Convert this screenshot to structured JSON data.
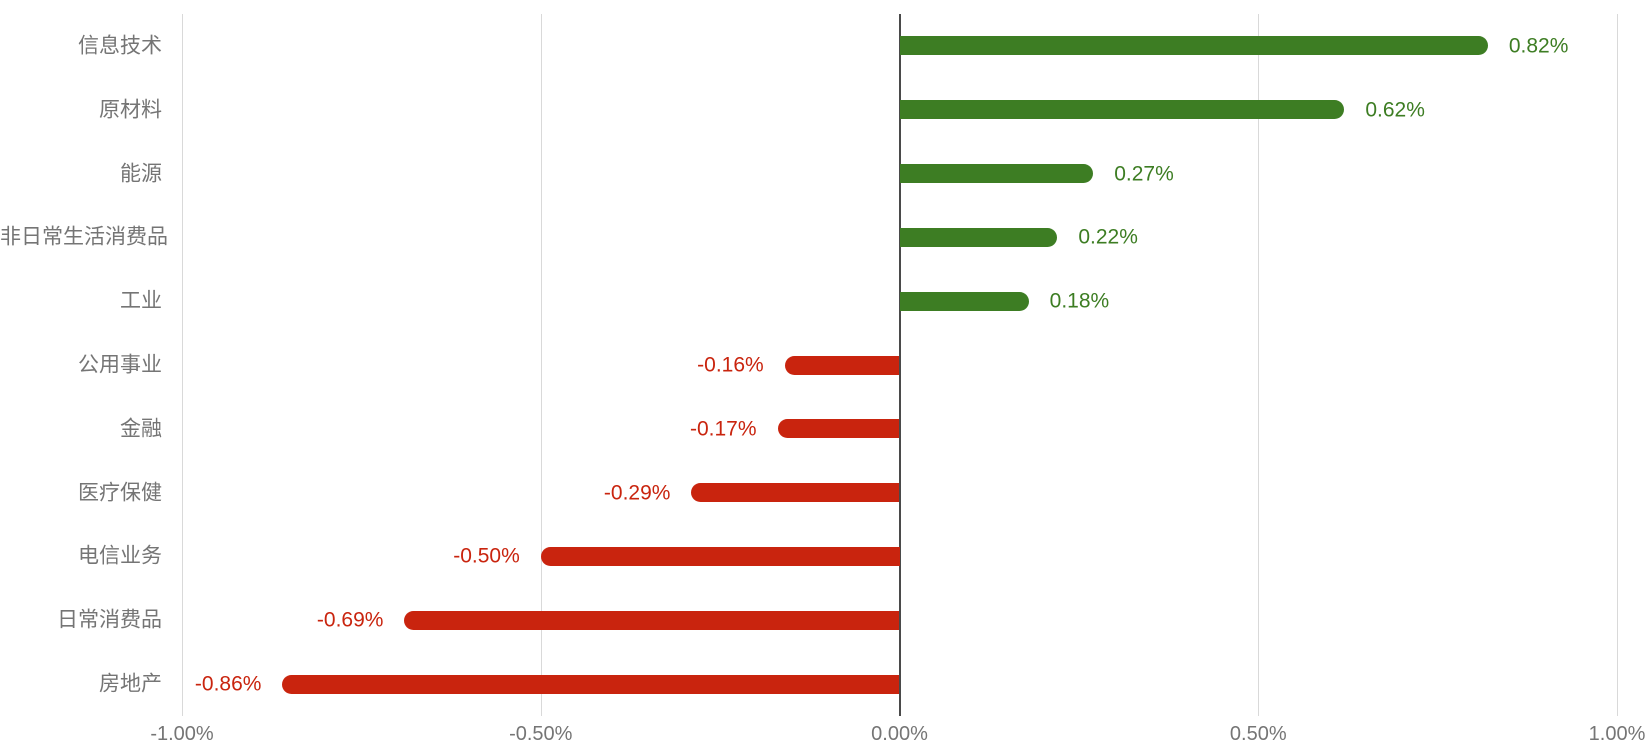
{
  "chart_data": {
    "type": "bar",
    "orientation": "horizontal",
    "title": "",
    "xlabel": "",
    "ylabel": "",
    "categories": [
      "信息技术",
      "原材料",
      "能源",
      "非日常生活消费品",
      "工业",
      "公用事业",
      "金融",
      "医疗保健",
      "电信业务",
      "日常消费品",
      "房地产"
    ],
    "values": [
      0.82,
      0.62,
      0.27,
      0.22,
      0.18,
      -0.16,
      -0.17,
      -0.29,
      -0.5,
      -0.69,
      -0.86
    ],
    "value_labels": [
      "0.82%",
      "0.62%",
      "0.27%",
      "0.22%",
      "0.18%",
      "-0.16%",
      "-0.17%",
      "-0.29%",
      "-0.50%",
      "-0.69%",
      "-0.86%"
    ],
    "x_ticks": [
      -1.0,
      -0.5,
      0.0,
      0.5,
      1.0
    ],
    "x_tick_labels": [
      "-1.00%",
      "-0.50%",
      "0.00%",
      "0.50%",
      "1.00%"
    ],
    "xlim": [
      -1.0,
      1.0
    ],
    "grid": true,
    "legend": false,
    "colors": {
      "positive_bar": "#3D7D23",
      "negative_bar": "#C9240E",
      "category_text": "#757575",
      "tick_text": "#757575",
      "gridline": "#D9D9D9",
      "zero_axis": "#4A4A4A",
      "background": "#FFFFFF"
    }
  }
}
